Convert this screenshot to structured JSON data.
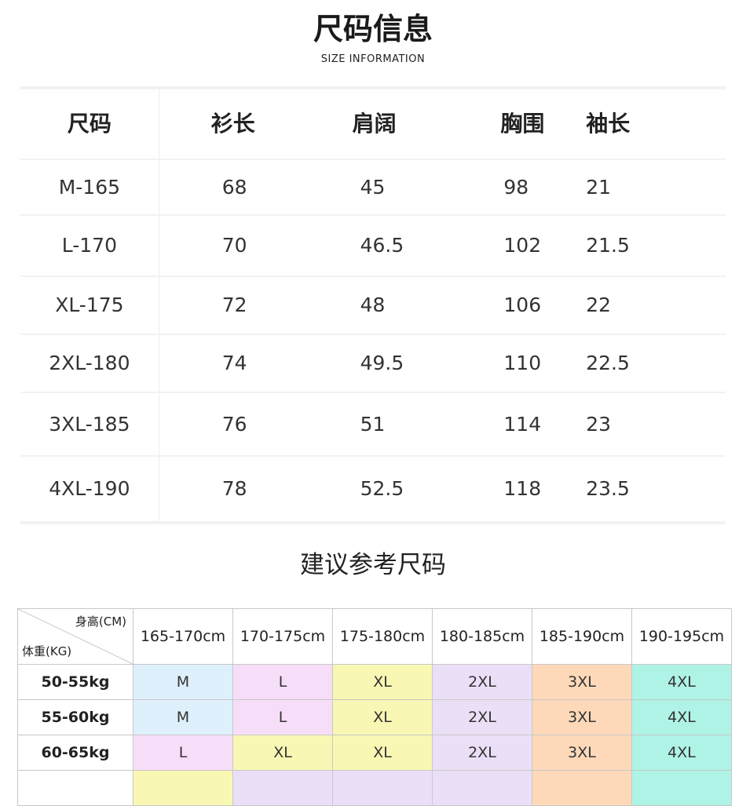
{
  "header": {
    "title": "尺码信息",
    "subtitle": "SIZE INFORMATION"
  },
  "size_table": {
    "columns": [
      "尺码",
      "衫长",
      "肩阔",
      "胸围",
      "袖长"
    ],
    "rows": [
      [
        "M-165",
        "68",
        "45",
        "98",
        "21"
      ],
      [
        "L-170",
        "70",
        "46.5",
        "102",
        "21.5"
      ],
      [
        "XL-175",
        "72",
        "48",
        "106",
        "22"
      ],
      [
        "2XL-180",
        "74",
        "49.5",
        "110",
        "22.5"
      ],
      [
        "3XL-185",
        "76",
        "51",
        "114",
        "23"
      ],
      [
        "4XL-190",
        "78",
        "52.5",
        "118",
        "23.5"
      ]
    ]
  },
  "recommend": {
    "title": "建议参考尺码",
    "height_label": "身高(CM)",
    "weight_label": "体重(KG)",
    "heights": [
      "165-170cm",
      "170-175cm",
      "175-180cm",
      "180-185cm",
      "185-190cm",
      "190-195cm"
    ],
    "colors": {
      "M": "#dff0fd",
      "L": "#f7def8",
      "XL": "#f8f8b4",
      "2XL": "#ebdff7",
      "3XL": "#fdd9b9",
      "4XL": "#aef3e6"
    },
    "rows": [
      {
        "weight": "50-55kg",
        "sizes": [
          "M",
          "L",
          "XL",
          "2XL",
          "3XL",
          "4XL"
        ]
      },
      {
        "weight": "55-60kg",
        "sizes": [
          "M",
          "L",
          "XL",
          "2XL",
          "3XL",
          "4XL"
        ]
      },
      {
        "weight": "60-65kg",
        "sizes": [
          "L",
          "XL",
          "XL",
          "2XL",
          "3XL",
          "4XL"
        ]
      }
    ],
    "partial_row_colors": [
      "#f8f8b4",
      "#ebdff7",
      "#ebdff7",
      "#ebdff7",
      "#fdd9b9",
      "#aef3e6"
    ]
  }
}
